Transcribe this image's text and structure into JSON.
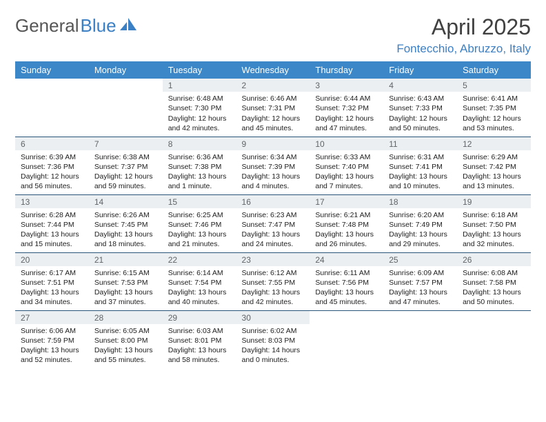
{
  "brand": {
    "part1": "General",
    "part2": "Blue"
  },
  "title": "April 2025",
  "location": "Fontecchio, Abruzzo, Italy",
  "colors": {
    "header_bg": "#3b87c8",
    "header_fg": "#ffffff",
    "daynum_bg": "#eceff1",
    "daynum_fg": "#606468",
    "rule": "#28547a",
    "brand_gray": "#565656",
    "brand_blue": "#3b7fc4",
    "title_color": "#404040",
    "body_text": "#202020",
    "page_bg": "#ffffff"
  },
  "day_header_fontsize": 13,
  "daynum_fontsize": 12,
  "body_fontsize": 10.5,
  "title_fontsize": 32,
  "subtitle_fontsize": 17,
  "days_of_week": [
    "Sunday",
    "Monday",
    "Tuesday",
    "Wednesday",
    "Thursday",
    "Friday",
    "Saturday"
  ],
  "weeks": [
    [
      null,
      null,
      {
        "n": "1",
        "sunrise": "6:48 AM",
        "sunset": "7:30 PM",
        "daylight": "12 hours and 42 minutes."
      },
      {
        "n": "2",
        "sunrise": "6:46 AM",
        "sunset": "7:31 PM",
        "daylight": "12 hours and 45 minutes."
      },
      {
        "n": "3",
        "sunrise": "6:44 AM",
        "sunset": "7:32 PM",
        "daylight": "12 hours and 47 minutes."
      },
      {
        "n": "4",
        "sunrise": "6:43 AM",
        "sunset": "7:33 PM",
        "daylight": "12 hours and 50 minutes."
      },
      {
        "n": "5",
        "sunrise": "6:41 AM",
        "sunset": "7:35 PM",
        "daylight": "12 hours and 53 minutes."
      }
    ],
    [
      {
        "n": "6",
        "sunrise": "6:39 AM",
        "sunset": "7:36 PM",
        "daylight": "12 hours and 56 minutes."
      },
      {
        "n": "7",
        "sunrise": "6:38 AM",
        "sunset": "7:37 PM",
        "daylight": "12 hours and 59 minutes."
      },
      {
        "n": "8",
        "sunrise": "6:36 AM",
        "sunset": "7:38 PM",
        "daylight": "13 hours and 1 minute."
      },
      {
        "n": "9",
        "sunrise": "6:34 AM",
        "sunset": "7:39 PM",
        "daylight": "13 hours and 4 minutes."
      },
      {
        "n": "10",
        "sunrise": "6:33 AM",
        "sunset": "7:40 PM",
        "daylight": "13 hours and 7 minutes."
      },
      {
        "n": "11",
        "sunrise": "6:31 AM",
        "sunset": "7:41 PM",
        "daylight": "13 hours and 10 minutes."
      },
      {
        "n": "12",
        "sunrise": "6:29 AM",
        "sunset": "7:42 PM",
        "daylight": "13 hours and 13 minutes."
      }
    ],
    [
      {
        "n": "13",
        "sunrise": "6:28 AM",
        "sunset": "7:44 PM",
        "daylight": "13 hours and 15 minutes."
      },
      {
        "n": "14",
        "sunrise": "6:26 AM",
        "sunset": "7:45 PM",
        "daylight": "13 hours and 18 minutes."
      },
      {
        "n": "15",
        "sunrise": "6:25 AM",
        "sunset": "7:46 PM",
        "daylight": "13 hours and 21 minutes."
      },
      {
        "n": "16",
        "sunrise": "6:23 AM",
        "sunset": "7:47 PM",
        "daylight": "13 hours and 24 minutes."
      },
      {
        "n": "17",
        "sunrise": "6:21 AM",
        "sunset": "7:48 PM",
        "daylight": "13 hours and 26 minutes."
      },
      {
        "n": "18",
        "sunrise": "6:20 AM",
        "sunset": "7:49 PM",
        "daylight": "13 hours and 29 minutes."
      },
      {
        "n": "19",
        "sunrise": "6:18 AM",
        "sunset": "7:50 PM",
        "daylight": "13 hours and 32 minutes."
      }
    ],
    [
      {
        "n": "20",
        "sunrise": "6:17 AM",
        "sunset": "7:51 PM",
        "daylight": "13 hours and 34 minutes."
      },
      {
        "n": "21",
        "sunrise": "6:15 AM",
        "sunset": "7:53 PM",
        "daylight": "13 hours and 37 minutes."
      },
      {
        "n": "22",
        "sunrise": "6:14 AM",
        "sunset": "7:54 PM",
        "daylight": "13 hours and 40 minutes."
      },
      {
        "n": "23",
        "sunrise": "6:12 AM",
        "sunset": "7:55 PM",
        "daylight": "13 hours and 42 minutes."
      },
      {
        "n": "24",
        "sunrise": "6:11 AM",
        "sunset": "7:56 PM",
        "daylight": "13 hours and 45 minutes."
      },
      {
        "n": "25",
        "sunrise": "6:09 AM",
        "sunset": "7:57 PM",
        "daylight": "13 hours and 47 minutes."
      },
      {
        "n": "26",
        "sunrise": "6:08 AM",
        "sunset": "7:58 PM",
        "daylight": "13 hours and 50 minutes."
      }
    ],
    [
      {
        "n": "27",
        "sunrise": "6:06 AM",
        "sunset": "7:59 PM",
        "daylight": "13 hours and 52 minutes."
      },
      {
        "n": "28",
        "sunrise": "6:05 AM",
        "sunset": "8:00 PM",
        "daylight": "13 hours and 55 minutes."
      },
      {
        "n": "29",
        "sunrise": "6:03 AM",
        "sunset": "8:01 PM",
        "daylight": "13 hours and 58 minutes."
      },
      {
        "n": "30",
        "sunrise": "6:02 AM",
        "sunset": "8:03 PM",
        "daylight": "14 hours and 0 minutes."
      },
      null,
      null,
      null
    ]
  ],
  "labels": {
    "sunrise": "Sunrise: ",
    "sunset": "Sunset: ",
    "daylight": "Daylight: "
  }
}
